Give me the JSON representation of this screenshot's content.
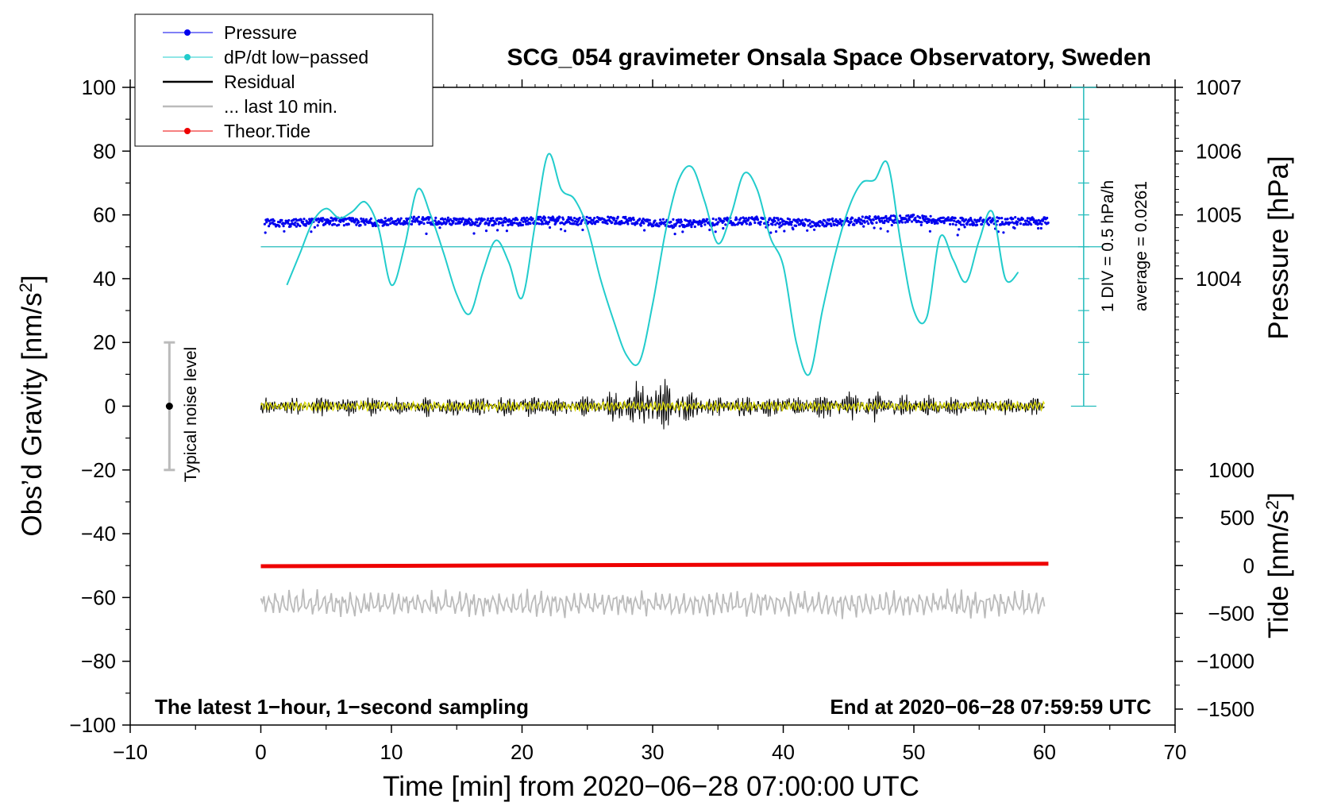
{
  "chart_data": {
    "type": "line",
    "title": "SCG_054 gravimeter Onsala Space Observatory, Sweden",
    "xlabel": "Time [min] from 2020−06−28 07:00:00 UTC",
    "ylabel_prefix": "Obs’d Gravity [nm/s",
    "ylabel_sup": "2",
    "ylabel_suffix": "]",
    "xlim": [
      -10,
      70
    ],
    "ylim": [
      -100,
      100
    ],
    "xticks": [
      -10,
      0,
      10,
      20,
      30,
      40,
      50,
      60,
      70
    ],
    "xtick_labels": [
      "−10",
      "0",
      "10",
      "20",
      "30",
      "40",
      "50",
      "60",
      "70"
    ],
    "yticks": [
      -100,
      -80,
      -60,
      -40,
      -20,
      0,
      20,
      40,
      60,
      80,
      100
    ],
    "ytick_labels": [
      "−100",
      "−80",
      "−60",
      "−40",
      "−20",
      "0",
      "20",
      "40",
      "60",
      "80",
      "100"
    ],
    "pressure_axis": {
      "label": "Pressure [hPa]",
      "ticks": [
        1004,
        1005,
        1006,
        1007
      ],
      "tick_labels": [
        "1004",
        "1005",
        "1006",
        "1007"
      ],
      "value_at_gravity_0": 1002,
      "hpa_per_gravity_unit": 0.05
    },
    "tide_axis": {
      "label_prefix": "Tide [nm/s",
      "label_sup": "2",
      "label_suffix": "]",
      "ticks": [
        -1500,
        -1000,
        -500,
        0,
        500,
        1000
      ],
      "tick_labels": [
        "−1500",
        "−1000",
        "−500",
        "0",
        "500",
        "1000"
      ],
      "value_at_gravity_minus50": 0,
      "tide_per_gravity_unit": 33.33
    },
    "dpdt_scale": {
      "label": "1 DIV = 0.5 hPa/h",
      "average_label": "average = 0.0261",
      "x": 63,
      "y_from": 0,
      "y_to": 100,
      "baseline_y": 50,
      "div": 10
    },
    "noise_bar": {
      "label": "Typical noise level",
      "x": -7,
      "y_center": 0,
      "y_low": -20,
      "y_high": 20
    },
    "note_left": "The latest 1−hour, 1−second sampling",
    "note_right": "End at 2020−06−28 07:59:59 UTC",
    "legend": [
      {
        "name": "Pressure",
        "color": "#0000ee",
        "marker": true
      },
      {
        "name": "dP/dt low−passed",
        "color": "#22cccc",
        "marker": true
      },
      {
        "name": "Residual",
        "color": "#000000",
        "marker": false
      },
      {
        "name": "... last 10 min.",
        "color": "#bbbbbb",
        "marker": false
      },
      {
        "name": "Theor.Tide",
        "color": "#ee0000",
        "marker": true
      }
    ],
    "series": [
      {
        "name": "Pressure",
        "color": "#0000ee",
        "note": "dense dots, gravity units",
        "x": [
          0.3,
          2,
          4,
          6,
          8,
          10,
          12,
          14,
          16,
          18,
          20,
          22,
          24,
          26,
          28,
          30,
          32,
          34,
          36,
          38,
          40,
          42,
          44,
          46,
          48,
          50,
          52,
          54,
          56,
          58,
          60.3
        ],
        "values": [
          57.5,
          57.3,
          57.8,
          58.0,
          57.6,
          57.9,
          58.3,
          58.0,
          57.7,
          57.8,
          57.9,
          58.3,
          58.1,
          58.4,
          58.2,
          57.6,
          57.3,
          57.5,
          58.0,
          58.2,
          57.8,
          57.4,
          57.7,
          58.2,
          58.6,
          58.8,
          58.3,
          57.9,
          58.0,
          58.1,
          58.2
        ],
        "scatter_amplitude": 1.2
      },
      {
        "name": "dP/dt low−passed",
        "color": "#22cccc",
        "x": [
          2,
          3,
          4,
          5,
          6,
          7,
          8,
          9,
          10,
          11,
          12,
          13,
          14,
          15,
          16,
          17,
          18,
          19,
          20,
          21,
          22,
          23,
          24,
          25,
          26,
          27,
          28,
          29,
          30,
          31,
          32,
          33,
          34,
          35,
          36,
          37,
          38,
          39,
          40,
          41,
          42,
          43,
          44,
          45,
          46,
          47,
          48,
          49,
          50,
          51,
          52,
          53,
          54,
          55,
          56,
          57,
          58
        ],
        "values": [
          38,
          48,
          58,
          62,
          59,
          61,
          64,
          56,
          38,
          50,
          68,
          60,
          48,
          35,
          29,
          42,
          52,
          45,
          34,
          57,
          79,
          68,
          65,
          56,
          40,
          27,
          16,
          14,
          32,
          55,
          71,
          75,
          64,
          51,
          60,
          73,
          68,
          53,
          44,
          20,
          10,
          30,
          48,
          62,
          70,
          71,
          76,
          51,
          30,
          28,
          53,
          46,
          39,
          52,
          61,
          40,
          42
        ]
      },
      {
        "name": "Residual",
        "color": "#000000",
        "note": "1-s samples, envelope amplitude in gravity units",
        "x": [
          0,
          5,
          10,
          15,
          20,
          25,
          27,
          29,
          30,
          31,
          33,
          35,
          40,
          42,
          46,
          50,
          55,
          60
        ],
        "amplitude": [
          3.5,
          3.5,
          3.5,
          4.0,
          4.0,
          3.8,
          5.5,
          9.0,
          9.5,
          9.0,
          5.5,
          4.0,
          4.0,
          4.0,
          6.0,
          4.0,
          3.5,
          3.5
        ]
      },
      {
        "name": "Residual (yellow filtered)",
        "color": "#dddd00",
        "amplitude": 1.5
      },
      {
        "name": "... last 10 min.",
        "color": "#bbbbbb",
        "x_range": [
          0,
          60
        ],
        "center": -62,
        "amplitude": 4
      },
      {
        "name": "Theor.Tide",
        "color": "#ee0000",
        "x": [
          0,
          60.3
        ],
        "values": [
          -50.2,
          -49.4
        ]
      }
    ]
  }
}
